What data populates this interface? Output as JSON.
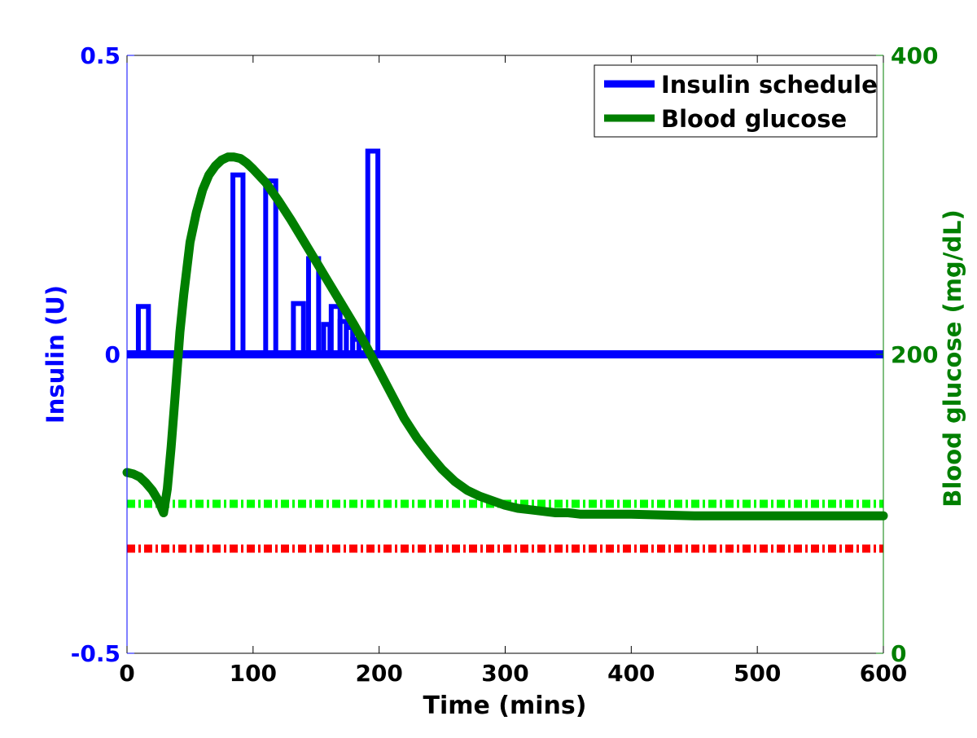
{
  "chart_data": {
    "type": "line",
    "xlabel": "Time (mins)",
    "ylabel_left": "Insulin (U)",
    "ylabel_right": "Blood glucose (mg/dL)",
    "xlim": [
      0,
      600
    ],
    "ylim_left": [
      -0.5,
      0.5
    ],
    "ylim_right": [
      0,
      400
    ],
    "xticks": [
      "0",
      "100",
      "200",
      "300",
      "400",
      "500",
      "600"
    ],
    "yticks_left": [
      "-0.5",
      "0",
      "0.5"
    ],
    "yticks_right": [
      "0",
      "200",
      "400"
    ],
    "legend_position": "top-right",
    "colors": {
      "insulin": "#0000ff",
      "glucose": "#007f00",
      "upper_threshold": "#00ff00",
      "lower_threshold": "#ff0000",
      "axis_left": "#0000ff",
      "axis_right": "#007f00",
      "axis_bottom": "#000000"
    },
    "series": [
      {
        "name": "Insulin schedule",
        "axis": "left",
        "pulses": [
          {
            "start": 9,
            "end": 17,
            "value": 0.08
          },
          {
            "start": 84,
            "end": 92,
            "value": 0.3
          },
          {
            "start": 110,
            "end": 118,
            "value": 0.29
          },
          {
            "start": 132,
            "end": 140,
            "value": 0.085
          },
          {
            "start": 144,
            "end": 152,
            "value": 0.16
          },
          {
            "start": 156,
            "end": 161,
            "value": 0.05
          },
          {
            "start": 162,
            "end": 169,
            "value": 0.08
          },
          {
            "start": 169,
            "end": 174,
            "value": 0.055
          },
          {
            "start": 174,
            "end": 179,
            "value": 0.045
          },
          {
            "start": 179,
            "end": 184,
            "value": 0.025
          },
          {
            "start": 191,
            "end": 199,
            "value": 0.34
          }
        ],
        "baseline": 0.0
      },
      {
        "name": "Blood glucose",
        "axis": "right",
        "x": [
          0,
          5,
          10,
          15,
          20,
          25,
          29,
          32,
          35,
          38,
          42,
          45,
          50,
          55,
          60,
          65,
          70,
          75,
          80,
          85,
          90,
          95,
          100,
          110,
          120,
          130,
          140,
          150,
          160,
          170,
          180,
          190,
          200,
          210,
          220,
          230,
          240,
          250,
          260,
          270,
          280,
          290,
          300,
          310,
          320,
          330,
          340,
          350,
          360,
          380,
          400,
          450,
          500,
          550,
          600
        ],
        "values": [
          121,
          120,
          118,
          114,
          109,
          102,
          94,
          110,
          138,
          170,
          215,
          240,
          275,
          295,
          310,
          320,
          326,
          330,
          332,
          332,
          331,
          328,
          324,
          315,
          303,
          290,
          276,
          262,
          248,
          234,
          220,
          205,
          189,
          173,
          157,
          144,
          133,
          123,
          115,
          109,
          105,
          102,
          99,
          97,
          96,
          95,
          94,
          94,
          93,
          93,
          93,
          92,
          92,
          92,
          92
        ]
      },
      {
        "name": "",
        "axis": "right",
        "style": "dash-dot",
        "color_key": "upper_threshold",
        "x": [
          0,
          600
        ],
        "values": [
          100,
          100
        ]
      },
      {
        "name": "",
        "axis": "right",
        "style": "dash-dot",
        "color_key": "lower_threshold",
        "x": [
          0,
          600
        ],
        "values": [
          70,
          70
        ]
      }
    ]
  }
}
